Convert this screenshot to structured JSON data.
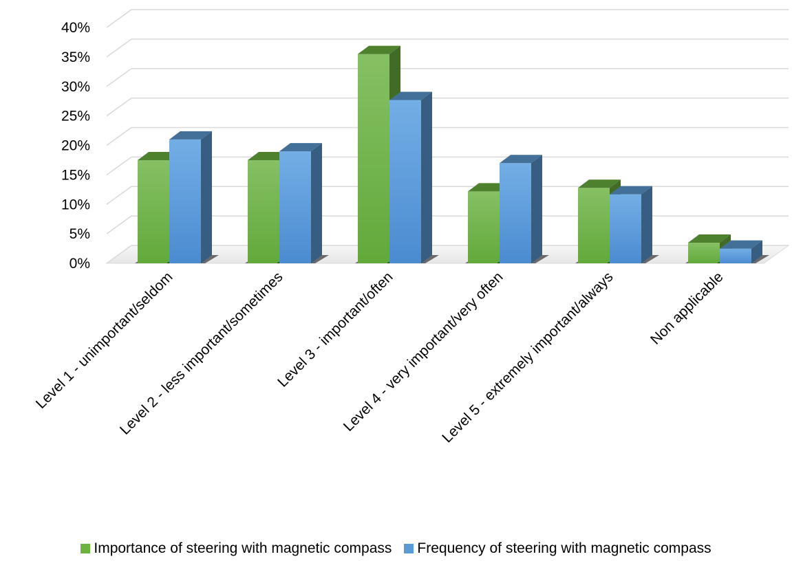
{
  "chart_data": {
    "type": "bar",
    "title": "",
    "xlabel": "",
    "ylabel": "",
    "ylim": [
      0,
      40
    ],
    "yticks": [
      "0%",
      "5%",
      "10%",
      "15%",
      "20%",
      "25%",
      "30%",
      "35%",
      "40%"
    ],
    "yunit": "%",
    "three_d": true,
    "grid": true,
    "legend_position": "bottom",
    "categories": [
      "Level 1 - unimportant/seldom",
      "Level 2 - less important/sometimes",
      "Level 3 - important/often",
      "Level 4 - very important/very often",
      "Level 5 - extremely important/always",
      "Non applicable"
    ],
    "series": [
      {
        "name": "Importance of steering with magnetic compass",
        "color": "#6db33f",
        "values": [
          17.5,
          17.5,
          35.5,
          12.2,
          12.8,
          3.5
        ]
      },
      {
        "name": "Frequency of steering with magnetic compass",
        "color": "#5b9bd5",
        "values": [
          21.0,
          19.0,
          27.7,
          17.0,
          11.7,
          2.5
        ]
      }
    ]
  }
}
